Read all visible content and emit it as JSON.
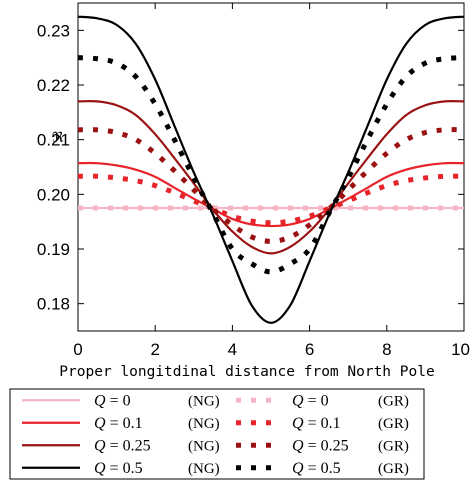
{
  "chart_data": {
    "type": "line",
    "xlabel": "Proper longitdinal distance from North Pole",
    "ylabel": "ℜ",
    "xlim": [
      0,
      10
    ],
    "ylim": [
      0.175,
      0.235
    ],
    "x_ticks": [
      "0",
      "2",
      "4",
      "6",
      "8",
      "10"
    ],
    "y_ticks": [
      "0.18",
      "0.19",
      "0.20",
      "0.21",
      "0.22",
      "0.23"
    ],
    "grid": false,
    "legend_position": "bottom",
    "x": [
      0,
      0.5,
      1,
      1.5,
      2,
      2.5,
      3,
      3.5,
      4,
      4.5,
      5,
      5.5,
      6,
      6.5,
      7,
      7.5,
      8,
      8.5,
      9,
      9.5,
      10
    ],
    "series": [
      {
        "name": "Q = 0 (NG)",
        "color": "#f4b6c2",
        "style": "solid",
        "values": [
          0.1975,
          0.1975,
          0.1975,
          0.1975,
          0.1975,
          0.1975,
          0.1975,
          0.1975,
          0.1975,
          0.1975,
          0.1975,
          0.1975,
          0.1975,
          0.1975,
          0.1975,
          0.1975,
          0.1975,
          0.1975,
          0.1975,
          0.1975,
          0.1975
        ]
      },
      {
        "name": "Q = 0 (GR)",
        "color": "#f4b6c2",
        "style": "dotted",
        "values": [
          0.1975,
          0.1975,
          0.1975,
          0.1975,
          0.1975,
          0.1975,
          0.1975,
          0.1975,
          0.1975,
          0.1975,
          0.1975,
          0.1975,
          0.1975,
          0.1975,
          0.1975,
          0.1975,
          0.1975,
          0.1975,
          0.1975,
          0.1975,
          0.1975
        ]
      },
      {
        "name": "Q = 0.1 (NG)",
        "color": "#e8232a",
        "style": "solid",
        "values": [
          0.2057,
          0.2057,
          0.2053,
          0.2045,
          0.2032,
          0.2012,
          0.1992,
          0.1973,
          0.1955,
          0.1945,
          0.1942,
          0.1945,
          0.1955,
          0.1973,
          0.1992,
          0.2012,
          0.2032,
          0.2045,
          0.2053,
          0.2057,
          0.2057
        ]
      },
      {
        "name": "Q = 0.1 (GR)",
        "color": "#e8232a",
        "style": "dotted",
        "values": [
          0.2033,
          0.2033,
          0.203,
          0.2025,
          0.2016,
          0.2003,
          0.1988,
          0.1974,
          0.196,
          0.1951,
          0.1948,
          0.1951,
          0.196,
          0.1974,
          0.1988,
          0.2003,
          0.2016,
          0.2025,
          0.203,
          0.2033,
          0.2033
        ]
      },
      {
        "name": "Q = 0.25 (NG)",
        "color": "#9b1111",
        "style": "solid",
        "values": [
          0.217,
          0.217,
          0.2163,
          0.2145,
          0.211,
          0.2066,
          0.202,
          0.1972,
          0.1932,
          0.1904,
          0.1892,
          0.1904,
          0.1932,
          0.1972,
          0.202,
          0.2066,
          0.211,
          0.2145,
          0.2163,
          0.217,
          0.217
        ]
      },
      {
        "name": "Q = 0.25 (GR)",
        "color": "#9b1111",
        "style": "dotted",
        "values": [
          0.2118,
          0.2118,
          0.2113,
          0.21,
          0.2075,
          0.2043,
          0.2008,
          0.1973,
          0.1944,
          0.1922,
          0.1914,
          0.1922,
          0.1944,
          0.1973,
          0.2008,
          0.2043,
          0.2075,
          0.21,
          0.2113,
          0.2118,
          0.2118
        ]
      },
      {
        "name": "Q = 0.5 (NG)",
        "color": "#000000",
        "style": "solid",
        "values": [
          0.2325,
          0.2322,
          0.231,
          0.2275,
          0.221,
          0.2125,
          0.204,
          0.1962,
          0.1878,
          0.1797,
          0.1765,
          0.1797,
          0.1878,
          0.1962,
          0.204,
          0.2125,
          0.221,
          0.2275,
          0.231,
          0.2322,
          0.2325
        ]
      },
      {
        "name": "Q = 0.5 (GR)",
        "color": "#000000",
        "style": "dotted",
        "values": [
          0.225,
          0.2248,
          0.224,
          0.2215,
          0.2165,
          0.21,
          0.203,
          0.1965,
          0.19,
          0.1873,
          0.1858,
          0.1873,
          0.19,
          0.1965,
          0.203,
          0.21,
          0.2165,
          0.2215,
          0.224,
          0.2248,
          0.225
        ]
      }
    ]
  },
  "legend": {
    "rows": [
      {
        "ng": {
          "q": "Q",
          "eq": " = 0",
          "tag": "(NG)"
        },
        "gr": {
          "q": "Q",
          "eq": " = 0",
          "tag": "(GR)"
        }
      },
      {
        "ng": {
          "q": "Q",
          "eq": " = 0.1",
          "tag": "(NG)"
        },
        "gr": {
          "q": "Q",
          "eq": " = 0.1",
          "tag": "(GR)"
        }
      },
      {
        "ng": {
          "q": "Q",
          "eq": " = 0.25",
          "tag": "(NG)"
        },
        "gr": {
          "q": "Q",
          "eq": " = 0.25",
          "tag": "(GR)"
        }
      },
      {
        "ng": {
          "q": "Q",
          "eq": " = 0.5",
          "tag": "(NG)"
        },
        "gr": {
          "q": "Q",
          "eq": " = 0.5",
          "tag": "(GR)"
        }
      }
    ]
  }
}
